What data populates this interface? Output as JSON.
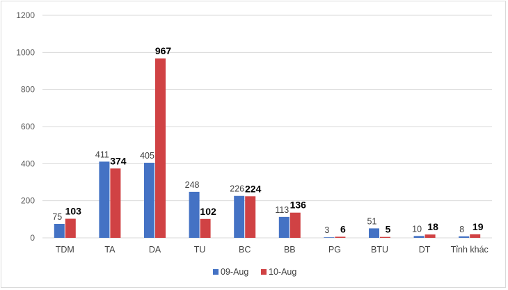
{
  "chart_data": {
    "type": "bar",
    "categories": [
      "TDM",
      "TA",
      "DA",
      "TU",
      "BC",
      "BB",
      "PG",
      "BTU",
      "DT",
      "Tỉnh khác"
    ],
    "series": [
      {
        "name": "09-Aug",
        "color": "#4472c4",
        "values": [
          75,
          411,
          405,
          248,
          226,
          113,
          3,
          51,
          10,
          8
        ]
      },
      {
        "name": "10-Aug",
        "color": "#d04244",
        "values": [
          103,
          374,
          967,
          102,
          224,
          136,
          6,
          5,
          18,
          19
        ]
      }
    ],
    "ylim": [
      0,
      1200
    ],
    "yticks": [
      0,
      200,
      400,
      600,
      800,
      1000,
      1200
    ],
    "grid": true,
    "legend_position": "bottom"
  }
}
